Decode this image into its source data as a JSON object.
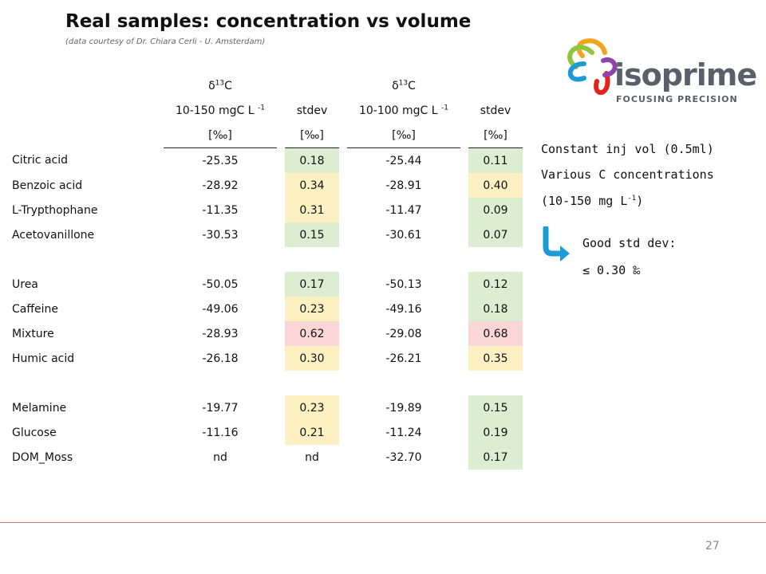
{
  "title": "Real samples: concentration vs volume",
  "subtitle": "(data courtesy of Dr. Chiara Cerli - U. Amsterdam)",
  "table": {
    "isotope_label": "δ",
    "isotope_sup": "13",
    "isotope_element": "C",
    "conc1_label": "10-150 mgC L",
    "conc2_label": "10-100 mgC L",
    "conc_sup": "-1",
    "stdev_label": "stdev",
    "unit_label": "[‰]",
    "rows": [
      {
        "name": "Citric acid",
        "v1": "-25.35",
        "s1": "0.18",
        "v2": "-25.44",
        "s2": "0.11"
      },
      {
        "name": "Benzoic acid",
        "v1": "-28.92",
        "s1": "0.34",
        "v2": "-28.91",
        "s2": "0.40"
      },
      {
        "name": "L-Trypthophane",
        "v1": "-11.35",
        "s1": "0.31",
        "v2": "-11.47",
        "s2": "0.09"
      },
      {
        "name": "Acetovanillone",
        "v1": "-30.53",
        "s1": "0.15",
        "v2": "-30.61",
        "s2": "0.07"
      },
      {
        "name": "Urea",
        "v1": "-50.05",
        "s1": "0.17",
        "v2": "-50.13",
        "s2": "0.12"
      },
      {
        "name": "Caffeine",
        "v1": "-49.06",
        "s1": "0.23",
        "v2": "-49.16",
        "s2": "0.18"
      },
      {
        "name": "Mixture",
        "v1": "-28.93",
        "s1": "0.62",
        "v2": "-29.08",
        "s2": "0.68"
      },
      {
        "name": "Humic acid",
        "v1": "-26.18",
        "s1": "0.30",
        "v2": "-26.21",
        "s2": "0.35"
      },
      {
        "name": "Melamine",
        "v1": "-19.77",
        "s1": "0.23",
        "v2": "-19.89",
        "s2": "0.15"
      },
      {
        "name": "Glucose",
        "v1": "-11.16",
        "s1": "0.21",
        "v2": "-11.24",
        "s2": "0.19"
      },
      {
        "name": "DOM_Moss",
        "v1": "nd",
        "s1": "nd",
        "v2": "-32.70",
        "s2": "0.17"
      }
    ]
  },
  "colors": {
    "green": "#dcedd2",
    "yellow": "#fdf0c2",
    "red": "#fbd6d6",
    "arrow": "#1e9ad6"
  },
  "logo": {
    "word": "isoprime",
    "tagline": "FOCUSING PRECISION"
  },
  "notes": {
    "line1": "Constant inj vol (0.5ml)",
    "line2": "Various C concentrations",
    "line3_pre": "(10-150 mg L",
    "line3_sup": "-1",
    "line3_post": ")",
    "good_label": "Good std dev:",
    "good_value": "≤ 0.30 ‰"
  },
  "page_number": "27"
}
